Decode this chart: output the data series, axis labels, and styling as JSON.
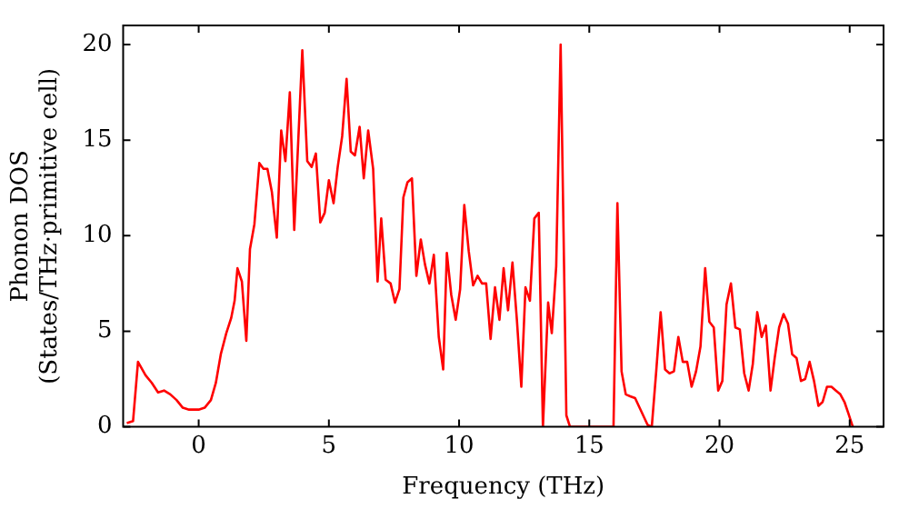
{
  "chart_data": {
    "type": "line",
    "xlabel": "Frequency (THz)",
    "ylabel": "Phonon DOS\n(States/THz·primitive cell)",
    "xlim": [
      -2.9,
      26.3
    ],
    "ylim": [
      0,
      21
    ],
    "xticks": [
      0,
      5,
      10,
      15,
      20,
      25
    ],
    "yticks": [
      0,
      5,
      10,
      15,
      20
    ],
    "grid": false,
    "legend": false,
    "marker": "none",
    "line_style": "solid",
    "series": [
      {
        "color": "#ff0000",
        "x": [
          -2.76,
          -2.52,
          -2.33,
          -2.04,
          -1.8,
          -1.56,
          -1.33,
          -1.09,
          -0.85,
          -0.61,
          -0.37,
          0.0,
          0.23,
          0.47,
          0.66,
          0.85,
          1.06,
          1.25,
          1.38,
          1.49,
          1.66,
          1.83,
          1.97,
          2.14,
          2.33,
          2.49,
          2.64,
          2.81,
          3.0,
          3.17,
          3.33,
          3.5,
          3.67,
          3.98,
          4.17,
          4.34,
          4.5,
          4.67,
          4.84,
          5.0,
          5.18,
          5.34,
          5.51,
          5.68,
          5.84,
          6.0,
          6.18,
          6.34,
          6.51,
          6.7,
          6.87,
          7.01,
          7.18,
          7.37,
          7.54,
          7.71,
          7.86,
          8.02,
          8.19,
          8.36,
          8.53,
          8.69,
          8.86,
          9.03,
          9.22,
          9.39,
          9.53,
          9.7,
          9.87,
          10.04,
          10.2,
          10.37,
          10.54,
          10.71,
          10.88,
          11.04,
          11.21,
          11.38,
          11.55,
          11.71,
          11.88,
          12.05,
          12.22,
          12.39,
          12.55,
          12.72,
          12.89,
          13.06,
          13.22,
          13.42,
          13.56,
          13.73,
          13.9,
          14.12,
          14.26,
          15.93,
          16.08,
          16.24,
          16.4,
          16.57,
          16.76,
          17.0,
          17.24,
          17.4,
          17.57,
          17.74,
          17.91,
          18.08,
          18.25,
          18.42,
          18.59,
          18.76,
          18.93,
          19.1,
          19.27,
          19.45,
          19.61,
          19.78,
          19.95,
          20.11,
          20.27,
          20.44,
          20.61,
          20.78,
          20.95,
          21.12,
          21.28,
          21.45,
          21.62,
          21.78,
          21.96,
          22.12,
          22.29,
          22.46,
          22.63,
          22.79,
          22.96,
          23.13,
          23.29,
          23.46,
          23.63,
          23.8,
          23.96,
          24.13,
          24.3,
          24.47,
          24.64,
          24.8,
          24.95,
          25.12
        ],
        "values": [
          0.2,
          0.3,
          3.4,
          2.7,
          2.3,
          1.8,
          1.9,
          1.7,
          1.4,
          1.0,
          0.9,
          0.9,
          1.0,
          1.4,
          2.3,
          3.8,
          4.9,
          5.7,
          6.6,
          8.3,
          7.6,
          4.5,
          9.3,
          10.6,
          13.8,
          13.5,
          13.5,
          12.3,
          9.9,
          15.5,
          13.9,
          17.5,
          10.3,
          19.7,
          13.9,
          13.6,
          14.3,
          10.7,
          11.2,
          12.9,
          11.7,
          13.6,
          15.2,
          18.2,
          14.4,
          14.2,
          15.7,
          13.0,
          15.5,
          13.5,
          7.6,
          10.9,
          7.7,
          7.5,
          6.5,
          7.2,
          12.0,
          12.8,
          13.0,
          7.9,
          9.8,
          8.5,
          7.5,
          9.0,
          4.7,
          3.0,
          9.1,
          6.9,
          5.6,
          7.2,
          11.6,
          9.2,
          7.4,
          7.9,
          7.5,
          7.5,
          4.6,
          7.3,
          5.6,
          8.3,
          6.1,
          8.6,
          5.6,
          2.1,
          7.3,
          6.6,
          10.9,
          11.2,
          0,
          6.5,
          4.9,
          8.4,
          20.0,
          0.6,
          0,
          0,
          11.7,
          2.9,
          1.7,
          1.6,
          1.5,
          0.8,
          0.1,
          0,
          2.9,
          6.0,
          3.0,
          2.8,
          2.9,
          4.7,
          3.4,
          3.4,
          2.1,
          2.9,
          4.2,
          8.3,
          5.5,
          5.2,
          1.9,
          2.4,
          6.4,
          7.5,
          5.2,
          5.1,
          2.8,
          1.9,
          3.3,
          6.0,
          4.7,
          5.3,
          1.9,
          3.6,
          5.2,
          5.9,
          5.4,
          3.8,
          3.6,
          2.4,
          2.5,
          3.4,
          2.4,
          1.1,
          1.3,
          2.1,
          2.1,
          1.9,
          1.7,
          1.3,
          0.7,
          0
        ]
      }
    ]
  }
}
